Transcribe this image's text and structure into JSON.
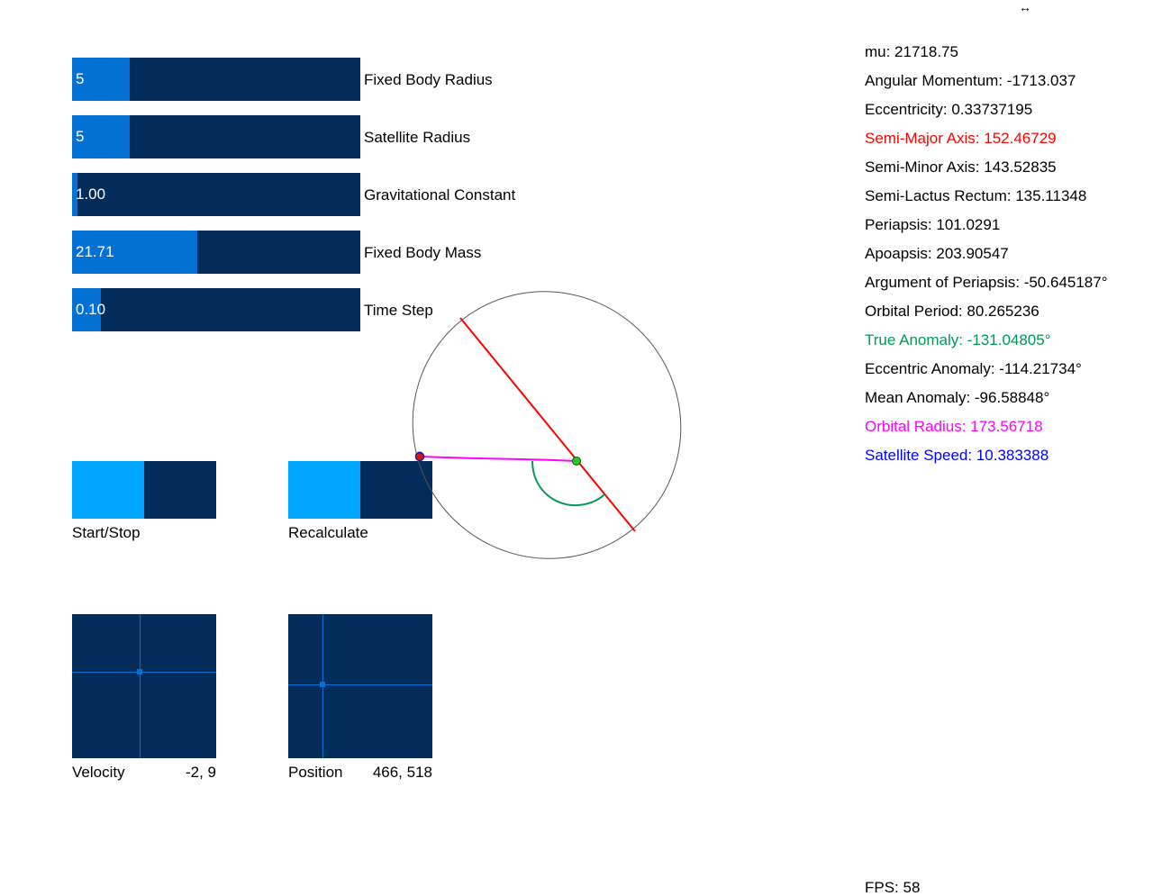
{
  "sliders": [
    {
      "value": "5",
      "label": "Fixed Body Radius",
      "fill": 0.2
    },
    {
      "value": "5",
      "label": "Satellite Radius",
      "fill": 0.2
    },
    {
      "value": "1.00",
      "label": "Gravitational Constant",
      "fill": 0.02
    },
    {
      "value": "21.71",
      "label": "Fixed Body Mass",
      "fill": 0.435
    },
    {
      "value": "0.10",
      "label": "Time Step",
      "fill": 0.1
    }
  ],
  "buttons": {
    "start_stop": "Start/Stop",
    "recalculate": "Recalculate"
  },
  "pads": {
    "velocity": {
      "label": "Velocity",
      "value": "-2, 9"
    },
    "position": {
      "label": "Position",
      "value": "466, 518"
    }
  },
  "stats": [
    {
      "text": "mu: 21718.75",
      "color": "#000000"
    },
    {
      "text": "Angular Momentum: -1713.037",
      "color": "#000000"
    },
    {
      "text": "Eccentricity: 0.33737195",
      "color": "#000000"
    },
    {
      "text": "Semi-Major Axis: 152.46729",
      "color": "#ff0000"
    },
    {
      "text": "Semi-Minor Axis: 143.52835",
      "color": "#000000"
    },
    {
      "text": "Semi-Lactus Rectum: 135.11348",
      "color": "#000000"
    },
    {
      "text": "Periapsis: 101.0291",
      "color": "#000000"
    },
    {
      "text": "Apoapsis: 203.90547",
      "color": "#000000"
    },
    {
      "text": "Argument of Periapsis: -50.645187°",
      "color": "#000000"
    },
    {
      "text": "Orbital Period: 80.265236",
      "color": "#000000"
    },
    {
      "text": "True Anomaly: -131.04805°",
      "color": "#009955"
    },
    {
      "text": "Eccentric Anomaly: -114.21734°",
      "color": "#000000"
    },
    {
      "text": "Mean Anomaly: -96.58848°",
      "color": "#000000"
    },
    {
      "text": "Orbital Radius: 173.56718",
      "color": "#ff00ff"
    },
    {
      "text": "Satellite Speed: 10.383388",
      "color": "#0000ff"
    }
  ],
  "fps": "FPS: 58",
  "cursor_glyph": "↔",
  "colors": {
    "slider_bg": "#022c5a",
    "slider_fill": "#0370d5",
    "button_half": "#00a5ff",
    "major_axis": "#ff0000",
    "radius_line": "#ff00ff",
    "anomaly_arc": "#009955"
  }
}
